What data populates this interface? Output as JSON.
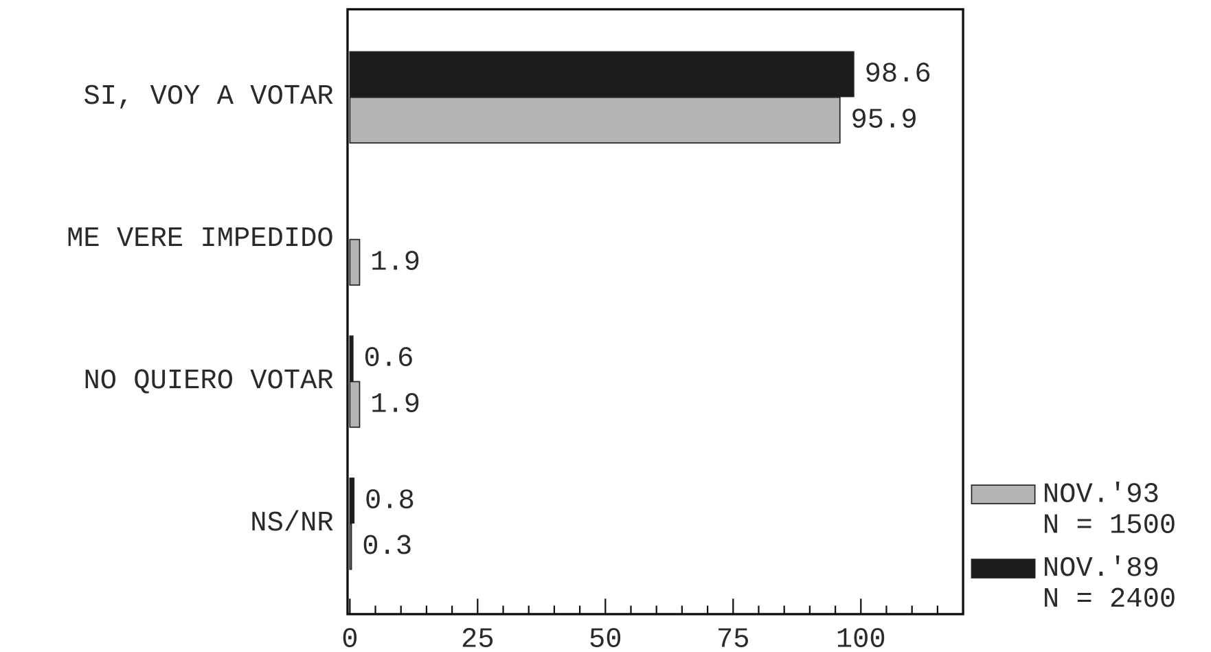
{
  "chart_data": {
    "type": "hbar",
    "categories": [
      "SI, VOY A VOTAR",
      "ME VERE IMPEDIDO",
      "NO QUIERO VOTAR",
      "NS/NR"
    ],
    "series": [
      {
        "name": "NOV.'93",
        "sample": "N = 1500",
        "color": "#b4b4b4",
        "values": [
          95.9,
          1.9,
          1.9,
          0.3
        ]
      },
      {
        "name": "NOV.'89",
        "sample": "N = 2400",
        "color": "#1c1c1c",
        "values": [
          98.6,
          null,
          0.6,
          0.8
        ]
      }
    ],
    "xlim": [
      0,
      120
    ],
    "xticks": [
      0,
      25,
      50,
      75,
      100
    ],
    "minor_xticks": [
      5,
      10,
      15,
      20,
      30,
      35,
      40,
      45,
      55,
      60,
      65,
      70,
      80,
      85,
      90,
      95,
      105,
      110,
      115
    ]
  }
}
